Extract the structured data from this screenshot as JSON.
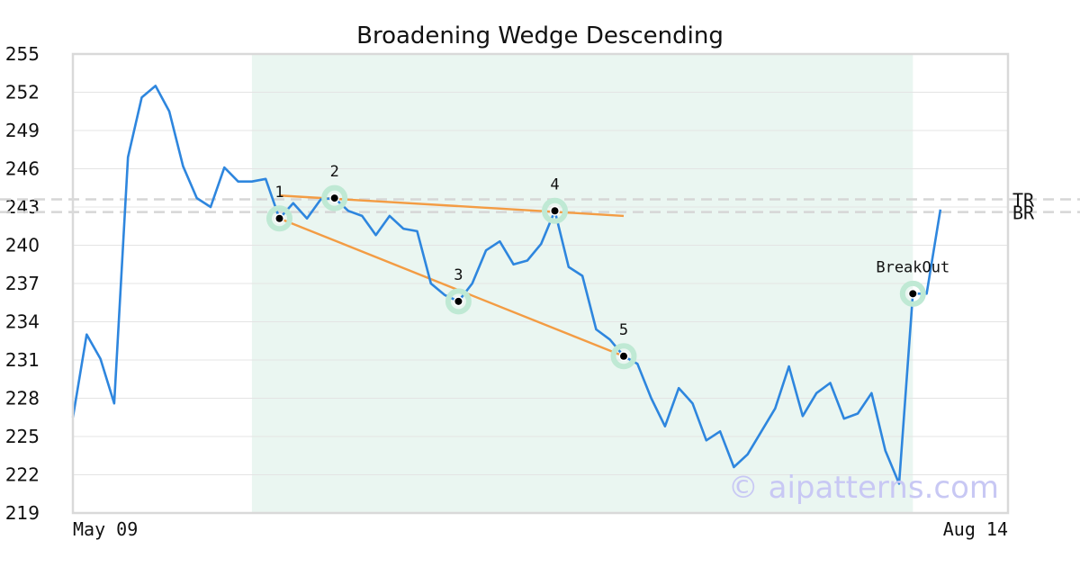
{
  "chart_data": {
    "type": "line",
    "title": "Broadening Wedge Descending",
    "xlabel": "",
    "ylabel": "",
    "ylim": [
      219,
      255
    ],
    "y_ticks": [
      219,
      222,
      225,
      228,
      231,
      234,
      237,
      240,
      243,
      246,
      249,
      252,
      255
    ],
    "x_tick_labels": [
      {
        "index": 0,
        "label": "May 09"
      },
      {
        "index": 63,
        "label": "Aug 14"
      }
    ],
    "series": [
      {
        "color": "#2e86de",
        "values": [
          226.5,
          233.0,
          231.1,
          227.6,
          246.9,
          251.6,
          252.5,
          250.5,
          246.2,
          243.7,
          243.0,
          246.1,
          245.0,
          245.0,
          245.2,
          242.1,
          243.3,
          242.1,
          243.6,
          243.7,
          242.7,
          242.3,
          240.8,
          242.3,
          241.3,
          241.1,
          237.0,
          236.1,
          235.6,
          237.0,
          239.6,
          240.3,
          238.5,
          238.8,
          240.1,
          242.7,
          238.3,
          237.6,
          233.4,
          232.6,
          231.3,
          230.7,
          228.0,
          225.8,
          228.8,
          227.6,
          224.7,
          225.4,
          222.6,
          223.6,
          225.4,
          227.2,
          230.5,
          226.6,
          228.4,
          229.2,
          226.4,
          226.8,
          228.4,
          223.9,
          221.3,
          236.2,
          236.2,
          242.8
        ]
      }
    ],
    "shaded_region": {
      "start_index": 13,
      "end_index": 61,
      "color": "#eaf6f1"
    },
    "pattern_points": [
      {
        "label": "1",
        "index": 15,
        "value": 242.1
      },
      {
        "label": "2",
        "index": 19,
        "value": 243.7
      },
      {
        "label": "3",
        "index": 28,
        "value": 235.6
      },
      {
        "label": "4",
        "index": 35,
        "value": 242.7
      },
      {
        "label": "5",
        "index": 40,
        "value": 231.3
      },
      {
        "label": "BreakOut",
        "index": 61,
        "value": 236.2
      }
    ],
    "trend_lines": [
      {
        "color": "#f39c44",
        "start": {
          "index": 15,
          "value": 243.9
        },
        "end": {
          "index": 40,
          "value": 242.3
        }
      },
      {
        "color": "#f39c44",
        "start": {
          "index": 15,
          "value": 242.1
        },
        "end": {
          "index": 40,
          "value": 231.3
        }
      }
    ],
    "levels": [
      {
        "label": "TR",
        "value": 243.6
      },
      {
        "label": "BR",
        "value": 242.6
      }
    ],
    "grid": true,
    "watermark": "© aipatterns.com"
  }
}
